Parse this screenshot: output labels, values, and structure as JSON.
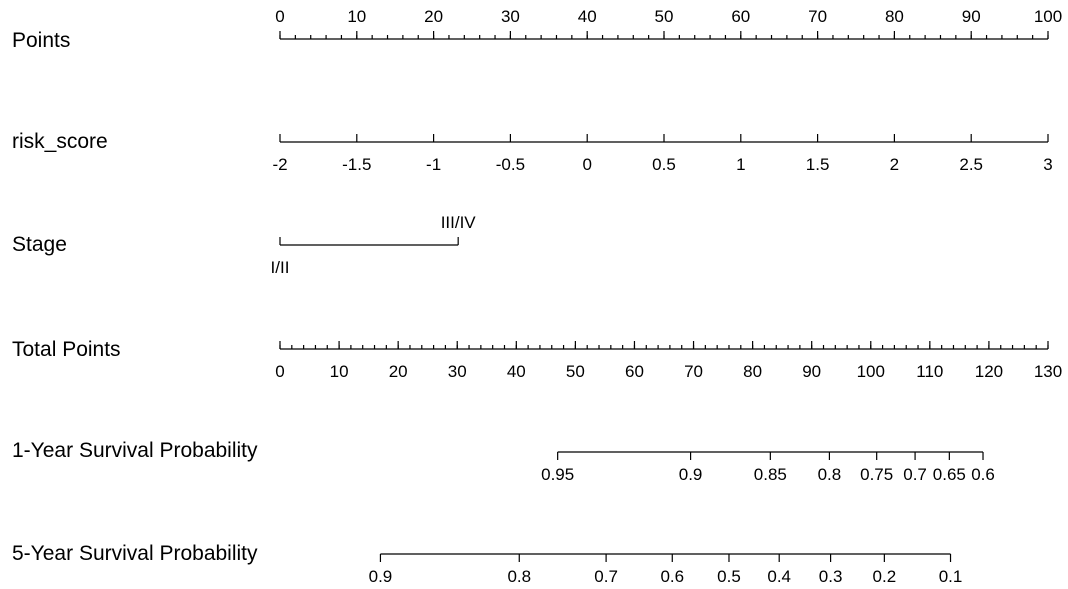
{
  "chart_data": {
    "type": "nomogram",
    "rows": [
      {
        "label": "Points",
        "kind": "scale",
        "ticks": [
          "0",
          "10",
          "20",
          "30",
          "40",
          "50",
          "60",
          "70",
          "80",
          "90",
          "100"
        ],
        "minor_step": 2,
        "range": [
          0,
          100
        ],
        "labels_position": "above"
      },
      {
        "label": "risk_score",
        "kind": "scale",
        "ticks": [
          "-2",
          "-1.5",
          "-1",
          "-0.5",
          "0",
          "0.5",
          "1",
          "1.5",
          "2",
          "2.5",
          "3"
        ],
        "points_range": [
          0,
          100
        ],
        "labels_position": "below"
      },
      {
        "label": "Stage",
        "kind": "categorical",
        "categories": [
          {
            "name": "I/II",
            "points": 0,
            "position": "below"
          },
          {
            "name": "III/IV",
            "points": 23.2,
            "position": "above"
          }
        ]
      },
      {
        "label": "Total Points",
        "kind": "scale",
        "ticks": [
          "0",
          "10",
          "20",
          "30",
          "40",
          "50",
          "60",
          "70",
          "80",
          "90",
          "100",
          "110",
          "120",
          "130"
        ],
        "minor_step": 2,
        "range": [
          0,
          130
        ],
        "labels_position": "below"
      },
      {
        "label": "1-Year Survival Probability",
        "kind": "probability",
        "ticks": [
          {
            "label": "0.95",
            "total_points": 47
          },
          {
            "label": "0.9",
            "total_points": 69.5
          },
          {
            "label": "0.85",
            "total_points": 83
          },
          {
            "label": "0.8",
            "total_points": 93
          },
          {
            "label": "0.75",
            "total_points": 101
          },
          {
            "label": "0.7",
            "total_points": 107.5
          },
          {
            "label": "0.65",
            "total_points": 113.3
          },
          {
            "label": "0.6",
            "total_points": 119
          }
        ]
      },
      {
        "label": "5-Year Survival Probability",
        "kind": "probability",
        "ticks": [
          {
            "label": "0.9",
            "total_points": 17
          },
          {
            "label": "0.8",
            "total_points": 40.5
          },
          {
            "label": "0.7",
            "total_points": 55.2
          },
          {
            "label": "0.6",
            "total_points": 66.4
          },
          {
            "label": "0.5",
            "total_points": 76
          },
          {
            "label": "0.4",
            "total_points": 84.5
          },
          {
            "label": "0.3",
            "total_points": 93.2
          },
          {
            "label": "0.2",
            "total_points": 102.3
          },
          {
            "label": "0.1",
            "total_points": 113.5
          }
        ]
      }
    ]
  }
}
